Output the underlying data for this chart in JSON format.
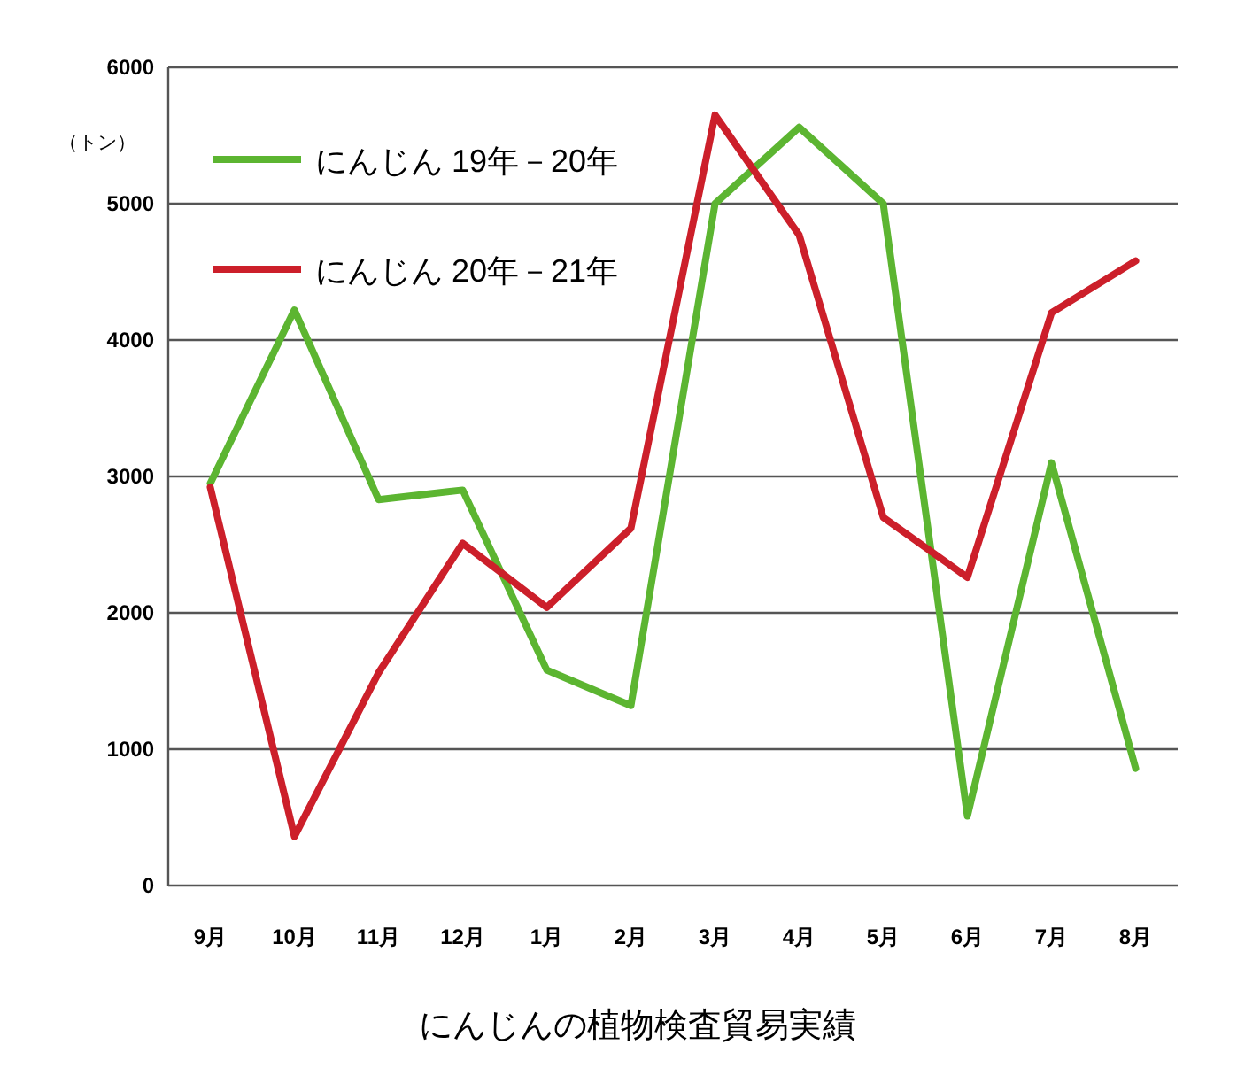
{
  "chart_data": {
    "type": "line",
    "title": "にんじんの植物検査貿易実績",
    "ylabel": "（トン）",
    "categories": [
      "9月",
      "10月",
      "11月",
      "12月",
      "1月",
      "2月",
      "3月",
      "4月",
      "5月",
      "6月",
      "7月",
      "8月"
    ],
    "series": [
      {
        "name": "にんじん 19年－20年",
        "color": "#5cb531",
        "values": [
          2950,
          4220,
          2830,
          2900,
          1580,
          1320,
          5000,
          5560,
          5000,
          510,
          3100,
          860
        ]
      },
      {
        "name": "にんじん 20年－21年",
        "color": "#cc1f2a",
        "values": [
          2920,
          360,
          1560,
          2510,
          2040,
          2620,
          5650,
          4770,
          2700,
          2260,
          4200,
          4580
        ]
      }
    ],
    "ylim": [
      0,
      6000
    ],
    "yticks": [
      0,
      1000,
      2000,
      3000,
      4000,
      5000,
      6000
    ],
    "grid": "y",
    "legend": "top left",
    "line_style": "solid"
  }
}
